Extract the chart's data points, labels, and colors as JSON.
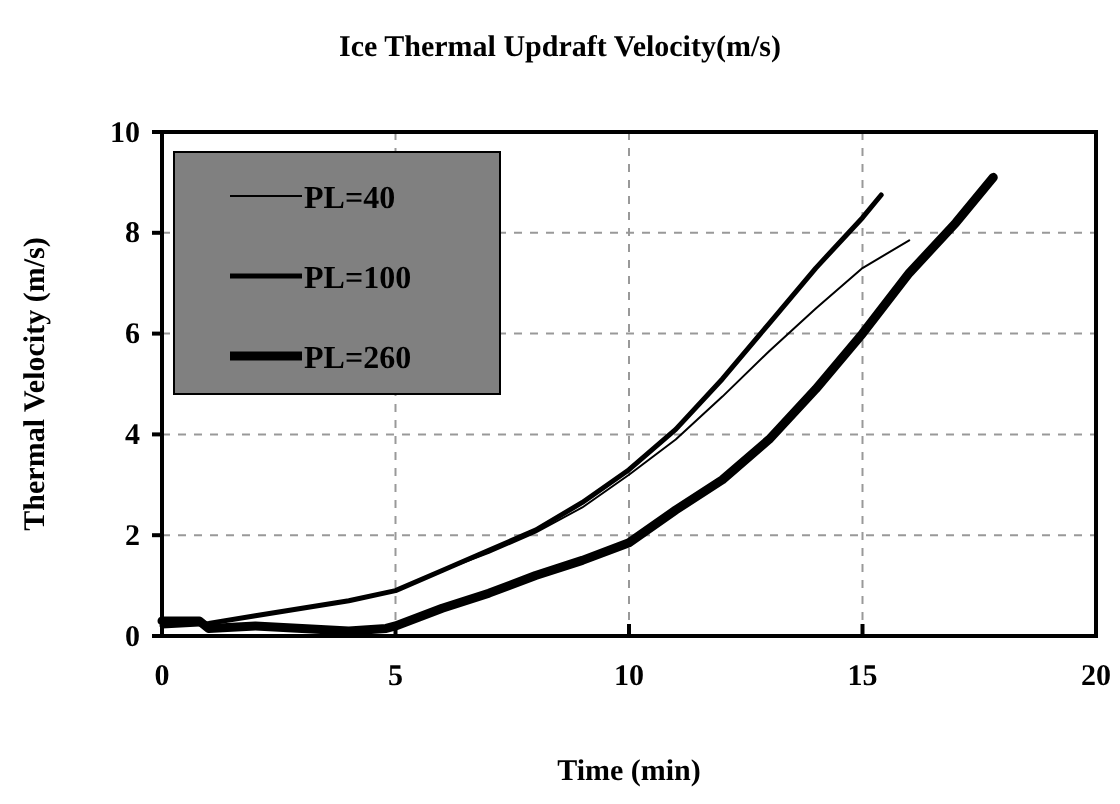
{
  "chart_data": {
    "type": "line",
    "title": "Ice Thermal Updraft Velocity(m/s)",
    "xlabel": "Time (min)",
    "ylabel": "Thermal Velocity (m/s)",
    "xlim": [
      0,
      20
    ],
    "xticks": [
      0,
      5,
      10,
      15,
      20
    ],
    "ylim": [
      0,
      10
    ],
    "yticks": [
      0,
      2,
      4,
      6,
      8,
      10
    ],
    "grid": true,
    "legend": "top left",
    "marker": "none",
    "line_style": "solid",
    "series": [
      {
        "name": "PL=40",
        "color": "#000000",
        "x": [
          0,
          1,
          2,
          3,
          4,
          5,
          6,
          7,
          8,
          9,
          10,
          11,
          12,
          13,
          14,
          15,
          16
        ],
        "values": [
          0.3,
          0.25,
          0.4,
          0.55,
          0.7,
          0.9,
          1.3,
          1.65,
          2.05,
          2.55,
          3.2,
          3.9,
          4.75,
          5.65,
          6.5,
          7.3,
          7.85
        ]
      },
      {
        "name": "PL=100",
        "color": "#000000",
        "x": [
          0,
          1,
          2,
          3,
          4,
          5,
          6,
          7,
          8,
          9,
          10,
          11,
          12,
          13,
          14,
          15,
          15.4
        ],
        "values": [
          0.2,
          0.25,
          0.4,
          0.55,
          0.7,
          0.9,
          1.3,
          1.7,
          2.1,
          2.65,
          3.3,
          4.1,
          5.1,
          6.2,
          7.3,
          8.3,
          8.75
        ]
      },
      {
        "name": "PL=260",
        "color": "#000000",
        "x": [
          0,
          0.8,
          1,
          2,
          3,
          4,
          4.8,
          5,
          6,
          7,
          8,
          9,
          10,
          11,
          12,
          13,
          14,
          15,
          16,
          17,
          17.8
        ],
        "values": [
          0.3,
          0.3,
          0.15,
          0.2,
          0.15,
          0.1,
          0.15,
          0.2,
          0.55,
          0.85,
          1.2,
          1.5,
          1.85,
          2.5,
          3.1,
          3.9,
          4.9,
          6.0,
          7.2,
          8.2,
          9.1
        ]
      }
    ]
  }
}
